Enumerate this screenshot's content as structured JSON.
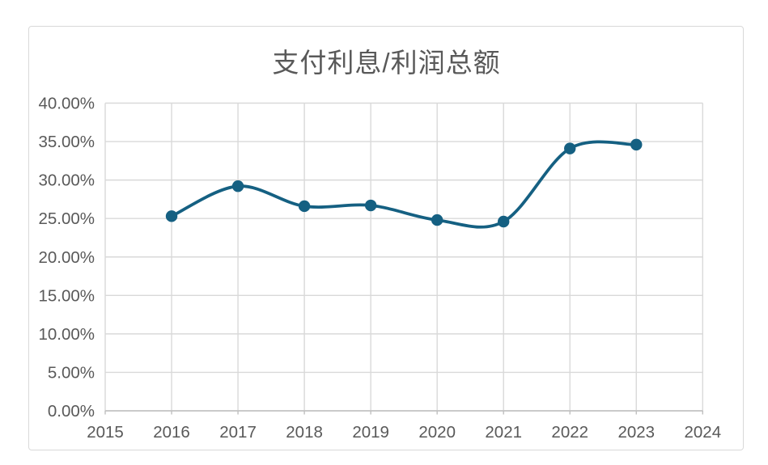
{
  "chart_data": {
    "type": "line",
    "title": "支付利息/利润总额",
    "x": [
      2016,
      2017,
      2018,
      2019,
      2020,
      2021,
      2022,
      2023
    ],
    "series": [
      {
        "name": "支付利息/利润总额",
        "values": [
          25.3,
          29.2,
          26.6,
          26.7,
          24.8,
          24.6,
          34.1,
          34.6
        ]
      }
    ],
    "smooth": true,
    "marker": "circle",
    "legend": "none",
    "grid": true,
    "x_axis": {
      "ticks": [
        2015,
        2016,
        2017,
        2018,
        2019,
        2020,
        2021,
        2022,
        2023,
        2024
      ],
      "tick_labels": [
        "2015",
        "2016",
        "2017",
        "2018",
        "2019",
        "2020",
        "2021",
        "2022",
        "2023",
        "2024"
      ]
    },
    "y_axis": {
      "min": 0,
      "max": 40,
      "step": 5,
      "tick_labels": [
        "0.00%",
        "5.00%",
        "10.00%",
        "15.00%",
        "20.00%",
        "25.00%",
        "30.00%",
        "35.00%",
        "40.00%"
      ]
    },
    "colors": {
      "line": "#156082",
      "grid": "#D9D9D9",
      "axis": "#BFBFBF",
      "text": "#595959",
      "border": "#D9D9D9",
      "background": "#FFFFFF"
    }
  }
}
